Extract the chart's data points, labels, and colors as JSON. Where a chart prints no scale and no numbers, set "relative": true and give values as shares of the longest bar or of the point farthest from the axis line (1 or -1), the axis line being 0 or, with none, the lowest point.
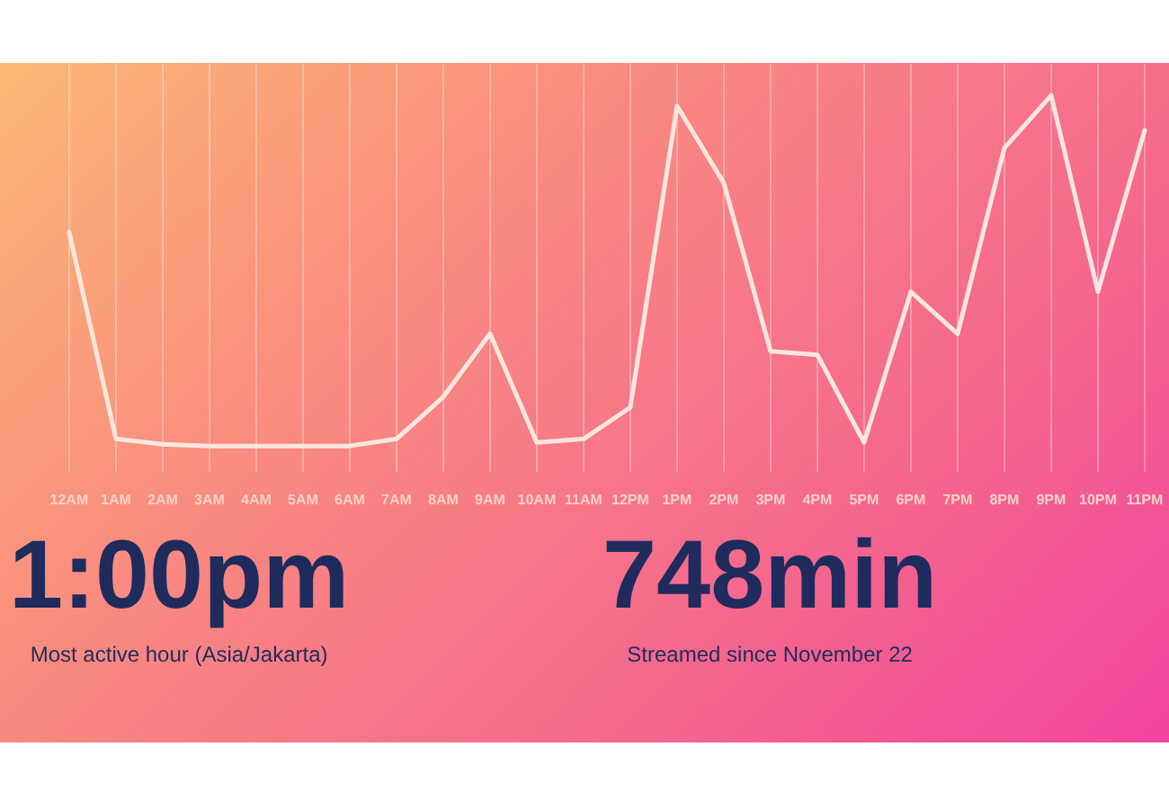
{
  "chart_data": {
    "type": "line",
    "relative": true,
    "grid": "x",
    "color": "#fde6de",
    "categories": [
      "12AM",
      "1AM",
      "2AM",
      "3AM",
      "4AM",
      "5AM",
      "6AM",
      "7AM",
      "8AM",
      "9AM",
      "10AM",
      "11AM",
      "12PM",
      "1PM",
      "2PM",
      "3PM",
      "4PM",
      "5PM",
      "6PM",
      "7PM",
      "8PM",
      "9PM",
      "10PM",
      "11PM"
    ],
    "values": [
      0.61,
      0.02,
      0.005,
      0,
      0,
      0,
      0,
      0.02,
      0.14,
      0.32,
      0.01,
      0.02,
      0.11,
      0.97,
      0.75,
      0.27,
      0.26,
      0.01,
      0.44,
      0.32,
      0.85,
      1,
      0.44,
      0.9
    ],
    "annotations": [
      "1:00pm",
      "Most active hour (Asia/Jakarta)",
      "748min",
      "Streamed since November 22"
    ]
  }
}
